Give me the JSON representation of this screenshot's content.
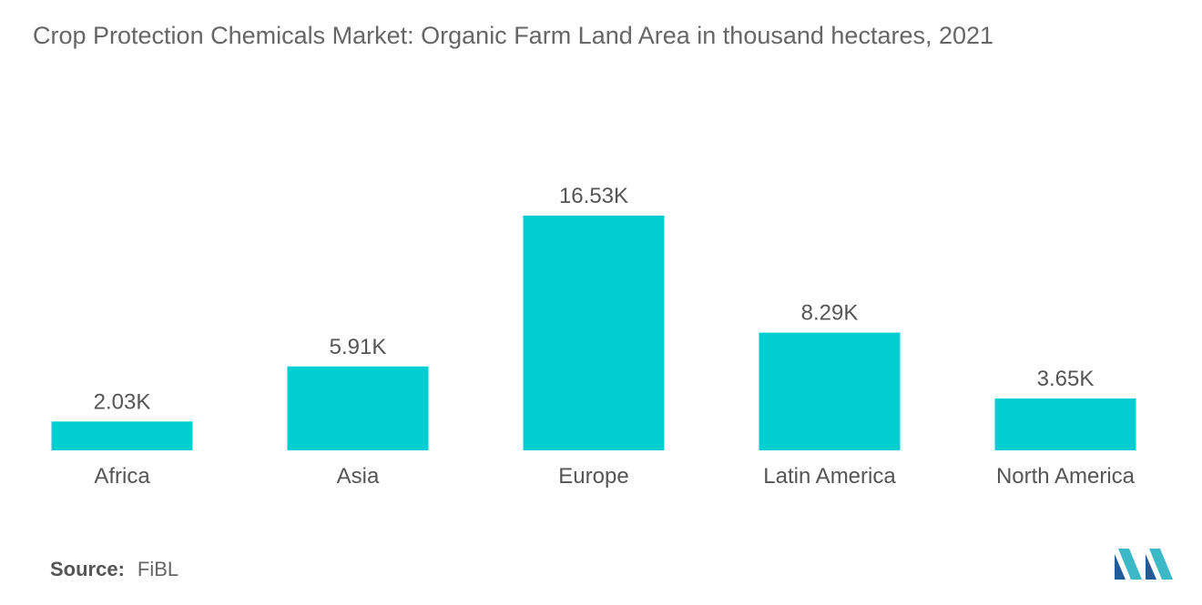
{
  "title": "Crop Protection Chemicals Market: Organic Farm Land Area in thousand hectares, 2021",
  "source": {
    "label": "Source:",
    "value": "FiBL"
  },
  "colors": {
    "bar": "#00CED1",
    "text": "#555555",
    "title": "#666666",
    "logo_dark": "#1F5C99",
    "logo_light": "#3BB9C6"
  },
  "logo_icon": "mordor-intelligence-logo-icon",
  "chart_data": {
    "type": "bar",
    "title": "Crop Protection Chemicals Market: Organic Farm Land Area in thousand hectares, 2021",
    "xlabel": "",
    "ylabel": "",
    "categories": [
      "Africa",
      "Asia",
      "Europe",
      "Latin America",
      "North America"
    ],
    "values": [
      2.03,
      5.91,
      16.53,
      8.29,
      3.65
    ],
    "data_labels": [
      "2.03K",
      "5.91K",
      "16.53K",
      "8.29K",
      "3.65K"
    ],
    "unit": "K",
    "ylim": [
      0,
      16.53
    ],
    "grid": false,
    "legend": "none"
  }
}
